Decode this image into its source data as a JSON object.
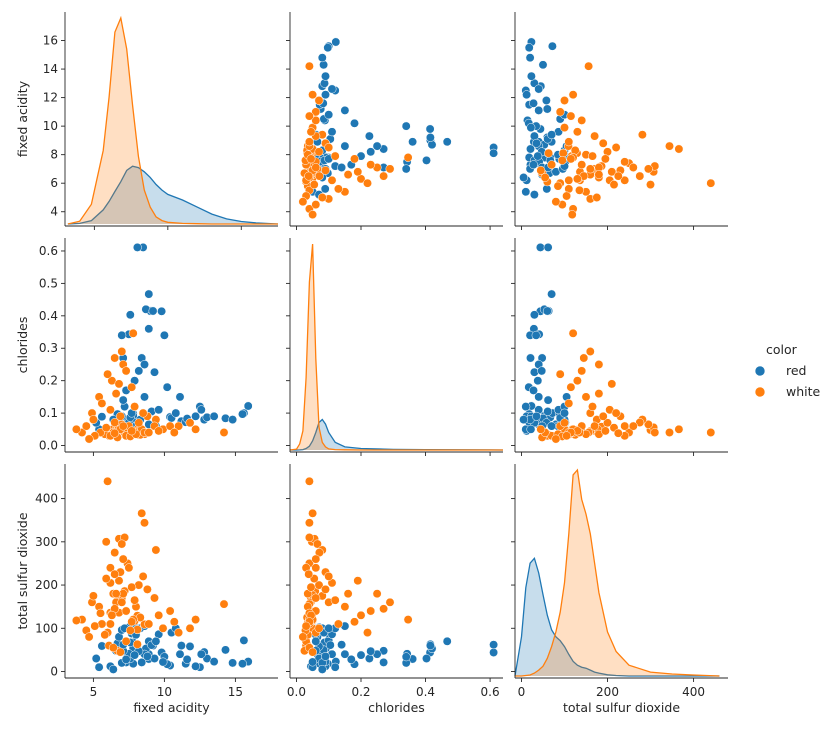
{
  "chart_data": {
    "type": "scatter",
    "kind": "pairplot",
    "variables": [
      "fixed acidity",
      "chlorides",
      "total sulfur dioxide"
    ],
    "hue": "color",
    "legend": {
      "title": "color",
      "placement": "right",
      "entries": [
        {
          "name": "red",
          "color": "#1f77b4"
        },
        {
          "name": "white",
          "color": "#ff7f0e"
        }
      ]
    },
    "axes": {
      "fixed acidity": {
        "range": [
          3,
          18
        ],
        "ticks": [
          4,
          6,
          8,
          10,
          12,
          14,
          16
        ],
        "xticks": [
          5,
          10,
          15
        ],
        "diag_range": [
          3.0,
          17.5
        ]
      },
      "chlorides": {
        "range": [
          -0.02,
          0.64
        ],
        "ticks": [
          0.0,
          0.1,
          0.2,
          0.3,
          0.4,
          0.5,
          0.6
        ],
        "xticks": [
          0.0,
          0.2,
          0.4,
          0.6
        ]
      },
      "total sulfur dioxide": {
        "range": [
          -15,
          480
        ],
        "ticks": [
          0,
          100,
          200,
          300,
          400
        ],
        "xticks": [
          0,
          200,
          400
        ]
      }
    },
    "series": [
      {
        "name": "red",
        "color": "#1f77b4",
        "points": [
          [
            7.4,
            0.076,
            34
          ],
          [
            7.8,
            0.098,
            67
          ],
          [
            7.8,
            0.092,
            54
          ],
          [
            11.2,
            0.075,
            60
          ],
          [
            7.4,
            0.076,
            34
          ],
          [
            7.9,
            0.069,
            102
          ],
          [
            8.9,
            0.065,
            40
          ],
          [
            7.3,
            0.065,
            21
          ],
          [
            7.8,
            0.073,
            18
          ],
          [
            7.5,
            0.071,
            102
          ],
          [
            6.7,
            0.097,
            65
          ],
          [
            5.6,
            0.089,
            59
          ],
          [
            8.9,
            0.36,
            29
          ],
          [
            8.5,
            0.611,
            44
          ],
          [
            8.1,
            0.611,
            62
          ],
          [
            7.6,
            0.087,
            67
          ],
          [
            6.9,
            0.07,
            45
          ],
          [
            11.5,
            0.072,
            18
          ],
          [
            12.8,
            0.08,
            45
          ],
          [
            15.6,
            0.1,
            72
          ],
          [
            15.9,
            0.122,
            23
          ],
          [
            15.5,
            0.097,
            18
          ],
          [
            13.0,
            0.087,
            30
          ],
          [
            14.3,
            0.084,
            50
          ],
          [
            12.5,
            0.12,
            10
          ],
          [
            11.6,
            0.083,
            28
          ],
          [
            10.4,
            0.088,
            14
          ],
          [
            9.8,
            0.414,
            44
          ],
          [
            9.0,
            0.415,
            63
          ],
          [
            8.7,
            0.42,
            53
          ],
          [
            9.2,
            0.415,
            60
          ],
          [
            8.9,
            0.467,
            70
          ],
          [
            7.6,
            0.403,
            30
          ],
          [
            7.5,
            0.343,
            41
          ],
          [
            7.0,
            0.34,
            20
          ],
          [
            10.0,
            0.34,
            34
          ],
          [
            8.4,
            0.27,
            21
          ],
          [
            7.1,
            0.27,
            48
          ],
          [
            8.6,
            0.25,
            40
          ],
          [
            9.3,
            0.226,
            30
          ],
          [
            8.2,
            0.23,
            47
          ],
          [
            7.9,
            0.2,
            38
          ],
          [
            10.2,
            0.18,
            17
          ],
          [
            11.1,
            0.15,
            40
          ],
          [
            12.2,
            0.09,
            12
          ],
          [
            9.1,
            0.105,
            61
          ],
          [
            6.8,
            0.065,
            80
          ],
          [
            6.2,
            0.045,
            12
          ],
          [
            5.4,
            0.05,
            10
          ],
          [
            5.2,
            0.07,
            30
          ],
          [
            7.0,
            0.09,
            96
          ],
          [
            7.7,
            0.1,
            88
          ],
          [
            8.3,
            0.08,
            100
          ],
          [
            9.6,
            0.11,
            86
          ],
          [
            10.5,
            0.085,
            90
          ],
          [
            11.8,
            0.07,
            58
          ],
          [
            13.5,
            0.09,
            23
          ],
          [
            14.8,
            0.08,
            20
          ],
          [
            6.4,
            0.08,
            5
          ],
          [
            7.2,
            0.12,
            100
          ],
          [
            8.0,
            0.06,
            85
          ],
          [
            9.4,
            0.06,
            70
          ],
          [
            10.8,
            0.1,
            100
          ],
          [
            12.6,
            0.11,
            40
          ],
          [
            7.1,
            0.14,
            62
          ],
          [
            8.8,
            0.09,
            35
          ],
          [
            9.9,
            0.05,
            22
          ],
          [
            6.6,
            0.06,
            48
          ],
          [
            8.6,
            0.15,
            105
          ],
          [
            7.3,
            0.17,
            28
          ]
        ]
      },
      {
        "name": "white",
        "color": "#ff7f0e",
        "points": [
          [
            7.0,
            0.045,
            170
          ],
          [
            6.3,
            0.049,
            132
          ],
          [
            8.1,
            0.05,
            97
          ],
          [
            7.2,
            0.058,
            186
          ],
          [
            7.2,
            0.058,
            186
          ],
          [
            8.1,
            0.05,
            97
          ],
          [
            6.2,
            0.045,
            136
          ],
          [
            7.0,
            0.045,
            170
          ],
          [
            6.3,
            0.049,
            132
          ],
          [
            8.1,
            0.044,
            129
          ],
          [
            8.1,
            0.033,
            63
          ],
          [
            8.6,
            0.035,
            109
          ],
          [
            7.9,
            0.04,
            117
          ],
          [
            6.6,
            0.044,
            139
          ],
          [
            8.3,
            0.033,
            125
          ],
          [
            6.6,
            0.05,
            177
          ],
          [
            6.6,
            0.044,
            160
          ],
          [
            6.2,
            0.034,
            110
          ],
          [
            6.4,
            0.035,
            180
          ],
          [
            6.8,
            0.042,
            136
          ],
          [
            6.0,
            0.04,
            440
          ],
          [
            5.9,
            0.048,
            300
          ],
          [
            6.8,
            0.056,
            307
          ],
          [
            7.2,
            0.04,
            310
          ],
          [
            7.0,
            0.065,
            295
          ],
          [
            8.4,
            0.05,
            366
          ],
          [
            8.6,
            0.04,
            344
          ],
          [
            9.4,
            0.08,
            281
          ],
          [
            6.5,
            0.071,
            275
          ],
          [
            7.4,
            0.04,
            250
          ],
          [
            7.8,
            0.346,
            120
          ],
          [
            7.0,
            0.29,
            160
          ],
          [
            6.5,
            0.27,
            145
          ],
          [
            7.1,
            0.25,
            180
          ],
          [
            6.3,
            0.2,
            130
          ],
          [
            6.0,
            0.22,
            90
          ],
          [
            7.3,
            0.23,
            140
          ],
          [
            6.8,
            0.19,
            210
          ],
          [
            7.7,
            0.18,
            115
          ],
          [
            5.4,
            0.15,
            150
          ],
          [
            4.9,
            0.1,
            160
          ],
          [
            4.2,
            0.04,
            120
          ],
          [
            3.8,
            0.05,
            118
          ],
          [
            4.5,
            0.06,
            95
          ],
          [
            5.0,
            0.08,
            175
          ],
          [
            5.6,
            0.13,
            110
          ],
          [
            6.2,
            0.11,
            205
          ],
          [
            6.9,
            0.09,
            230
          ],
          [
            7.5,
            0.06,
            240
          ],
          [
            8.2,
            0.07,
            200
          ],
          [
            8.8,
            0.09,
            190
          ],
          [
            9.3,
            0.06,
            170
          ],
          [
            9.9,
            0.05,
            100
          ],
          [
            10.4,
            0.06,
            140
          ],
          [
            11.0,
            0.06,
            90
          ],
          [
            11.8,
            0.07,
            100
          ],
          [
            14.2,
            0.04,
            156
          ],
          [
            12.2,
            0.05,
            120
          ],
          [
            6.1,
            0.03,
            60
          ],
          [
            6.7,
            0.025,
            48
          ],
          [
            7.3,
            0.03,
            70
          ],
          [
            5.8,
            0.035,
            85
          ],
          [
            6.4,
            0.04,
            55
          ],
          [
            7.6,
            0.028,
            95
          ],
          [
            8.0,
            0.035,
            150
          ],
          [
            6.9,
            0.05,
            45
          ],
          [
            5.5,
            0.04,
            135
          ],
          [
            7.9,
            0.12,
            165
          ],
          [
            6.6,
            0.16,
            180
          ],
          [
            8.5,
            0.1,
            220
          ],
          [
            7.1,
            0.06,
            260
          ],
          [
            6.2,
            0.03,
            240
          ],
          [
            5.9,
            0.055,
            215
          ],
          [
            7.7,
            0.045,
            195
          ],
          [
            6.5,
            0.038,
            225
          ],
          [
            8.9,
            0.04,
            110
          ],
          [
            9.6,
            0.045,
            130
          ],
          [
            10.7,
            0.04,
            115
          ],
          [
            5.1,
            0.03,
            105
          ],
          [
            4.7,
            0.02,
            80
          ]
        ]
      }
    ],
    "kde": {
      "fixed acidity": {
        "grid": [
          3.2,
          4.0,
          4.8,
          5.6,
          6.0,
          6.4,
          6.8,
          7.2,
          7.6,
          8.0,
          8.4,
          8.8,
          9.2,
          9.6,
          10.0,
          11.0,
          12.0,
          13.0,
          14.0,
          15.0,
          16.0,
          17.0,
          17.5
        ],
        "red": [
          0.0,
          0.002,
          0.012,
          0.05,
          0.08,
          0.115,
          0.15,
          0.19,
          0.205,
          0.2,
          0.185,
          0.165,
          0.14,
          0.12,
          0.105,
          0.085,
          0.06,
          0.035,
          0.018,
          0.009,
          0.004,
          0.001,
          0.0
        ],
        "white": [
          0.0,
          0.01,
          0.07,
          0.26,
          0.45,
          0.68,
          0.73,
          0.62,
          0.42,
          0.24,
          0.12,
          0.06,
          0.025,
          0.012,
          0.006,
          0.002,
          0.001,
          0.0,
          0.0,
          0.0,
          0.0,
          0.0,
          0.0
        ]
      },
      "chlorides": {
        "grid": [
          -0.02,
          0.0,
          0.01,
          0.02,
          0.03,
          0.04,
          0.05,
          0.06,
          0.07,
          0.08,
          0.09,
          0.1,
          0.12,
          0.15,
          0.2,
          0.3,
          0.4,
          0.5,
          0.6,
          0.64
        ],
        "red": [
          0.0,
          0.0,
          0.01,
          0.05,
          0.2,
          0.5,
          1.2,
          2.3,
          3.6,
          4.0,
          3.4,
          2.3,
          1.0,
          0.4,
          0.2,
          0.08,
          0.05,
          0.02,
          0.01,
          0.0
        ],
        "white": [
          0.0,
          0.1,
          0.8,
          2.5,
          9.5,
          22.0,
          27.0,
          12.0,
          3.0,
          1.0,
          0.4,
          0.15,
          0.05,
          0.02,
          0.0,
          0.0,
          0.0,
          0.0,
          0.0,
          0.0
        ]
      },
      "total sulfur dioxide": {
        "grid": [
          -15,
          0,
          10,
          20,
          30,
          40,
          50,
          60,
          70,
          80,
          90,
          100,
          110,
          120,
          130,
          140,
          150,
          160,
          170,
          180,
          200,
          220,
          250,
          300,
          350,
          400,
          460
        ],
        "red": [
          0.0,
          0.004,
          0.009,
          0.0115,
          0.012,
          0.0105,
          0.0083,
          0.0062,
          0.0047,
          0.004,
          0.0036,
          0.003,
          0.0022,
          0.0015,
          0.0011,
          0.0009,
          0.0008,
          0.0006,
          0.0004,
          0.0003,
          0.00012,
          5e-05,
          0.0,
          0.0,
          0.0,
          0.0,
          0.0
        ],
        "white": [
          0.0,
          0.0,
          5e-05,
          0.0001,
          0.0003,
          0.0006,
          0.001,
          0.0018,
          0.003,
          0.0045,
          0.0065,
          0.0095,
          0.0145,
          0.0205,
          0.021,
          0.018,
          0.0165,
          0.0145,
          0.0115,
          0.0085,
          0.0045,
          0.0025,
          0.0011,
          0.0004,
          0.0002,
          0.0001,
          0.0
        ]
      }
    }
  }
}
